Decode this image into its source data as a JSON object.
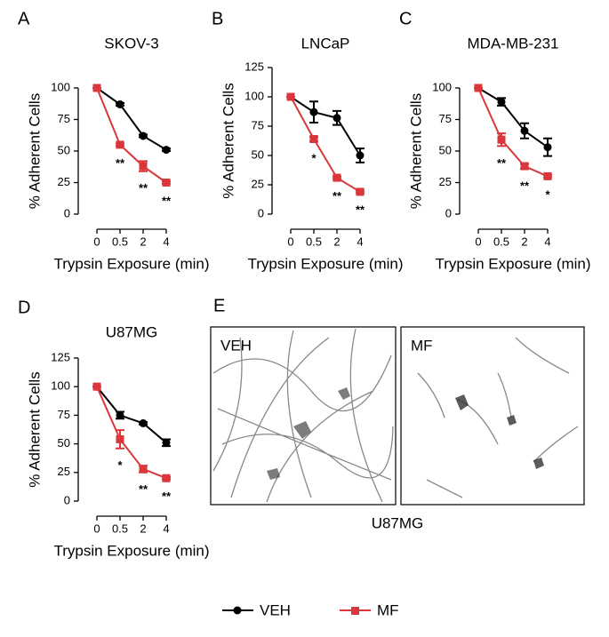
{
  "chart_data": [
    {
      "type": "line",
      "panel": "A",
      "title": "SKOV-3",
      "x_label": "Trypsin Exposure (min)",
      "y_label": "% Adherent Cells",
      "categories": [
        "0",
        "0.5",
        "2",
        "4"
      ],
      "ylim": [
        0,
        100
      ],
      "yticks": [
        0,
        25,
        50,
        75,
        100
      ],
      "series": [
        {
          "name": "VEH",
          "color": "#000000",
          "marker": "circle",
          "values": [
            100,
            87,
            62,
            51
          ],
          "errors": [
            0,
            1,
            1,
            1
          ]
        },
        {
          "name": "MF",
          "color": "#d9373b",
          "marker": "square",
          "values": [
            100,
            55,
            38,
            25
          ],
          "errors": [
            0,
            1,
            4,
            1
          ]
        }
      ],
      "annotations": [
        null,
        "**",
        "**",
        "**"
      ]
    },
    {
      "type": "line",
      "panel": "B",
      "title": "LNCaP",
      "x_label": "Trypsin Exposure (min)",
      "y_label": "% Adherent Cells",
      "categories": [
        "0",
        "0.5",
        "2",
        "4"
      ],
      "ylim": [
        0,
        125
      ],
      "yticks": [
        0,
        25,
        50,
        75,
        100,
        125
      ],
      "series": [
        {
          "name": "VEH",
          "color": "#000000",
          "marker": "circle",
          "values": [
            100,
            87,
            82,
            50
          ],
          "errors": [
            0,
            9,
            6,
            6
          ]
        },
        {
          "name": "MF",
          "color": "#d9373b",
          "marker": "square",
          "values": [
            100,
            64,
            31,
            19
          ],
          "errors": [
            0,
            2,
            1,
            1
          ]
        }
      ],
      "annotations": [
        null,
        "*",
        "**",
        "**"
      ]
    },
    {
      "type": "line",
      "panel": "C",
      "title": "MDA-MB-231",
      "x_label": "Trypsin Exposure (min)",
      "y_label": "% Adherent Cells",
      "categories": [
        "0",
        "0.5",
        "2",
        "4"
      ],
      "ylim": [
        0,
        100
      ],
      "yticks": [
        0,
        25,
        50,
        75,
        100
      ],
      "series": [
        {
          "name": "VEH",
          "color": "#000000",
          "marker": "circle",
          "values": [
            100,
            89,
            66,
            53
          ],
          "errors": [
            0,
            3,
            6,
            7
          ]
        },
        {
          "name": "MF",
          "color": "#d9373b",
          "marker": "square",
          "values": [
            100,
            59,
            38,
            30
          ],
          "errors": [
            0,
            5,
            2,
            1
          ]
        }
      ],
      "annotations": [
        null,
        "**",
        "**",
        "*"
      ]
    },
    {
      "type": "line",
      "panel": "D",
      "title": "U87MG",
      "x_label": "Trypsin Exposure (min)",
      "y_label": "% Adherent Cells",
      "categories": [
        "0",
        "0.5",
        "2",
        "4"
      ],
      "ylim": [
        0,
        125
      ],
      "yticks": [
        0,
        25,
        50,
        75,
        100,
        125
      ],
      "series": [
        {
          "name": "VEH",
          "color": "#000000",
          "marker": "circle",
          "values": [
            100,
            75,
            68,
            51
          ],
          "errors": [
            0,
            3,
            1,
            3
          ]
        },
        {
          "name": "MF",
          "color": "#d9373b",
          "marker": "square",
          "values": [
            100,
            54,
            28,
            20
          ],
          "errors": [
            0,
            8,
            3,
            1
          ]
        }
      ],
      "annotations": [
        null,
        "*",
        "**",
        "**"
      ]
    }
  ],
  "image_panel": {
    "panel": "E",
    "left_label": "VEH",
    "right_label": "MF",
    "caption": "U87MG"
  }
}
